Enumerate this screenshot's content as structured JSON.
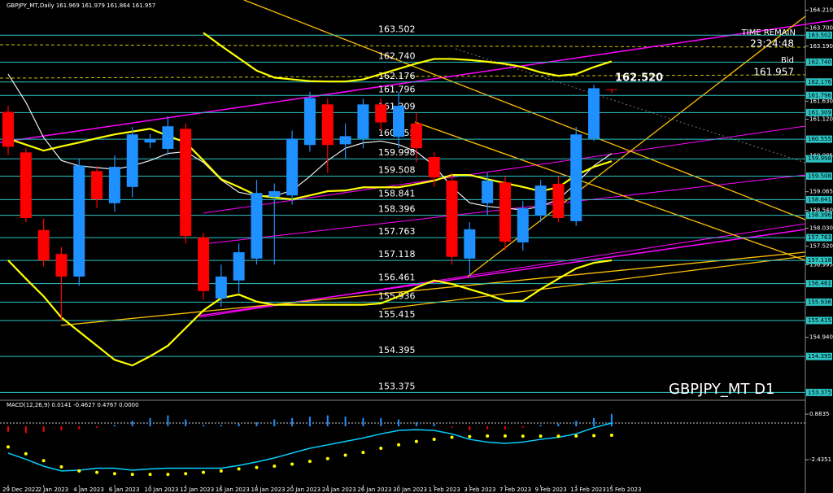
{
  "header": {
    "symbol_info": "GBPJPY_MT,Daily 161.969 161.979 161.864 161.957",
    "watermark": "GBPJPY_MT D1",
    "time_remain_label": "TIME REMAIN",
    "time_remain": "23:24:48",
    "bid_label": "Bid",
    "bid": 161.957,
    "callout": {
      "value": 162.52,
      "label": "162.520"
    }
  },
  "chart_data": [
    {
      "type": "candlestick",
      "categories": [
        "29 Dec 2022",
        null,
        "2 Jan 2023",
        null,
        "4 Jan 2023",
        null,
        "6 Jan 2023",
        null,
        "10 Jan 2023",
        null,
        "12 Jan 2023",
        null,
        "16 Jan 2023",
        null,
        "18 Jan 2023",
        null,
        "20 Jan 2023",
        null,
        "24 Jan 2023",
        null,
        "26 Jan 2023",
        null,
        "30 Jan 2023",
        null,
        "1 Feb 2023",
        null,
        "3 Feb 2023",
        null,
        "7 Feb 2023",
        null,
        "9 Feb 2023",
        null,
        "13 Feb 2023",
        null,
        "15 Feb 2023"
      ],
      "open": [
        161.33,
        160.18,
        157.98,
        157.3,
        156.66,
        159.65,
        158.74,
        159.2,
        160.46,
        160.28,
        160.85,
        157.77,
        156.04,
        156.55,
        157.17,
        158.92,
        158.96,
        160.39,
        161.54,
        160.41,
        160.57,
        161.54,
        160.62,
        161.0,
        160.05,
        159.38,
        157.17,
        158.74,
        159.33,
        157.63,
        158.39,
        159.29,
        158.23,
        160.57,
        161.969
      ],
      "high": [
        161.5,
        160.3,
        158.3,
        157.5,
        160.0,
        159.8,
        160.1,
        160.9,
        160.7,
        161.2,
        161.0,
        157.9,
        157.0,
        157.6,
        159.4,
        159.3,
        160.8,
        161.9,
        161.7,
        161.0,
        161.7,
        161.7,
        161.9,
        161.3,
        160.2,
        159.6,
        158.2,
        159.6,
        159.5,
        158.8,
        159.4,
        159.5,
        160.9,
        162.1,
        161.979
      ],
      "low": [
        160.1,
        158.2,
        156.95,
        155.4,
        156.4,
        158.6,
        158.5,
        158.9,
        160.3,
        160.1,
        157.6,
        156.0,
        155.8,
        156.2,
        157.0,
        157.0,
        158.7,
        160.2,
        159.6,
        160.0,
        160.3,
        160.8,
        160.3,
        159.9,
        159.2,
        157.0,
        156.7,
        158.4,
        157.4,
        157.4,
        158.2,
        158.2,
        158.1,
        160.5,
        161.864
      ],
      "close": [
        160.34,
        158.32,
        157.12,
        156.66,
        159.81,
        158.85,
        159.77,
        160.69,
        160.56,
        160.92,
        157.81,
        156.25,
        156.66,
        157.35,
        159.03,
        159.08,
        160.57,
        161.72,
        160.39,
        160.64,
        161.54,
        161.03,
        161.5,
        160.3,
        159.47,
        157.22,
        158.0,
        159.38,
        157.65,
        158.6,
        159.24,
        158.32,
        160.69,
        162.0,
        161.957
      ],
      "up_color": "#1e90ff",
      "down_color": "#ff0000",
      "lines": [
        {
          "color": "#f0f0f0",
          "width": 1.2,
          "values": [
            162.4,
            161.6,
            160.6,
            159.95,
            159.8,
            159.75,
            159.7,
            159.8,
            159.95,
            160.15,
            160.2,
            159.9,
            159.4,
            159.05,
            158.95,
            158.95,
            159.1,
            159.5,
            159.95,
            160.3,
            160.45,
            160.5,
            160.4,
            160.2,
            159.8,
            159.2,
            158.75,
            158.65,
            158.6,
            158.55,
            158.65,
            158.85,
            159.3,
            159.8,
            160.15
          ]
        },
        {
          "color": "#ffff00",
          "width": 2.2,
          "values": [
            160.57,
            160.4,
            160.23,
            160.35,
            160.46,
            160.58,
            160.69,
            160.77,
            160.85,
            160.65,
            160.46,
            159.95,
            159.42,
            159.2,
            158.96,
            158.9,
            158.85,
            158.96,
            159.08,
            159.1,
            159.19,
            159.19,
            159.19,
            159.28,
            159.38,
            159.54,
            159.54,
            159.42,
            159.31,
            159.2,
            159.08,
            159.19,
            159.54,
            159.77,
            159.93
          ]
        },
        {
          "color": "#ffff00",
          "width": 2.2,
          "values": [
            157.12,
            156.6,
            156.1,
            155.5,
            155.1,
            154.7,
            154.3,
            154.14,
            154.4,
            154.7,
            155.2,
            155.7,
            156.05,
            156.15,
            155.95,
            155.86,
            155.86,
            155.86,
            155.86,
            155.86,
            155.86,
            155.9,
            156.1,
            156.35,
            156.55,
            156.45,
            156.3,
            156.15,
            155.97,
            155.97,
            156.3,
            156.6,
            156.89,
            157.05,
            157.12
          ]
        },
        {
          "color": "#ffff00",
          "width": 2.2,
          "values": [
            null,
            null,
            null,
            null,
            null,
            null,
            null,
            null,
            null,
            null,
            null,
            163.57,
            163.2,
            162.85,
            162.5,
            162.3,
            162.25,
            162.2,
            162.19,
            162.19,
            162.25,
            162.4,
            162.55,
            162.7,
            162.83,
            162.83,
            162.8,
            162.75,
            162.69,
            162.6,
            162.45,
            162.35,
            162.4,
            162.6,
            162.76
          ]
        }
      ],
      "ylim": [
        153.2,
        164.5
      ],
      "yticks": [
        {
          "value": 164.21,
          "label": "164.210"
        },
        {
          "value": 163.7,
          "label": "163.700"
        },
        {
          "value": 163.19,
          "label": "163.190"
        },
        {
          "value": 161.63,
          "label": "161.630"
        },
        {
          "value": 161.12,
          "label": "161.120"
        },
        {
          "value": 160.085,
          "label": "160.085"
        },
        {
          "value": 159.065,
          "label": "159.065"
        },
        {
          "value": 158.54,
          "label": "158.540"
        },
        {
          "value": 158.03,
          "label": "158.030"
        },
        {
          "value": 157.52,
          "label": "157.520"
        },
        {
          "value": 156.995,
          "label": "156.995"
        },
        {
          "value": 154.94,
          "label": "154.940"
        }
      ],
      "levels": [
        {
          "value": 163.502,
          "label": "163.502"
        },
        {
          "value": 162.74,
          "label": "162.740"
        },
        {
          "value": 162.176,
          "label": "162.176"
        },
        {
          "value": 161.796,
          "label": "161.796"
        },
        {
          "value": 161.309,
          "label": "161.309"
        },
        {
          "value": 160.555,
          "label": "160.555"
        },
        {
          "value": 159.998,
          "label": "159.998"
        },
        {
          "value": 159.508,
          "label": "159.508"
        },
        {
          "value": 158.841,
          "label": "158.841"
        },
        {
          "value": 158.396,
          "label": "158.396"
        },
        {
          "value": 157.763,
          "label": "157.763"
        },
        {
          "value": 157.118,
          "label": "157.118"
        },
        {
          "value": 156.461,
          "label": "156.461"
        },
        {
          "value": 155.936,
          "label": "155.936"
        },
        {
          "value": 155.415,
          "label": "155.415"
        },
        {
          "value": 154.395,
          "label": "154.395"
        },
        {
          "value": 153.375,
          "label": "153.375"
        }
      ],
      "level_color": "#2ec4c4"
    },
    {
      "type": "macd",
      "title": "MACD(12,26,9) 0.0141 -0.4627 0.4767 0.0000",
      "histogram": [
        -0.4,
        -0.5,
        -0.4,
        -0.3,
        -0.2,
        -0.1,
        0.1,
        0.4,
        0.6,
        0.8,
        0.5,
        0.1,
        0.1,
        0.2,
        0.3,
        0.5,
        0.6,
        0.7,
        0.8,
        0.7,
        0.6,
        0.6,
        0.5,
        0.3,
        0.2,
        -0.1,
        -0.3,
        -0.2,
        -0.2,
        -0.1,
        0.1,
        0.2,
        0.4,
        0.6,
        0.9
      ],
      "line": [
        -1.95,
        -2.4,
        -2.9,
        -3.25,
        -3.2,
        -3.05,
        -3.05,
        -3.2,
        -3.1,
        -3.05,
        -3.05,
        -3.05,
        -3.05,
        -2.85,
        -2.6,
        -2.3,
        -1.95,
        -1.6,
        -1.35,
        -1.1,
        -0.85,
        -0.55,
        -0.3,
        -0.24,
        -0.3,
        -0.55,
        -0.95,
        -1.15,
        -1.24,
        -1.15,
        -0.95,
        -0.8,
        -0.55,
        -0.1,
        0.24
      ],
      "signal": [
        -1.5,
        -2.0,
        -2.5,
        -2.95,
        -3.25,
        -3.35,
        -3.45,
        -3.5,
        -3.5,
        -3.5,
        -3.45,
        -3.35,
        -3.25,
        -3.1,
        -3.0,
        -2.9,
        -2.75,
        -2.55,
        -2.35,
        -2.1,
        -1.9,
        -1.6,
        -1.35,
        -1.1,
        -0.95,
        -0.8,
        -0.75,
        -0.7,
        -0.7,
        -0.72,
        -0.72,
        -0.72,
        -0.7,
        -0.68,
        -0.65
      ],
      "line_color": "#00d0ff",
      "signal_color": "#ffff00",
      "up_color": "#1e90ff",
      "down_color": "#ff0000",
      "ylim": [
        -4.5,
        1.6
      ],
      "yticks": [
        0.8835,
        -2.4351
      ]
    }
  ]
}
